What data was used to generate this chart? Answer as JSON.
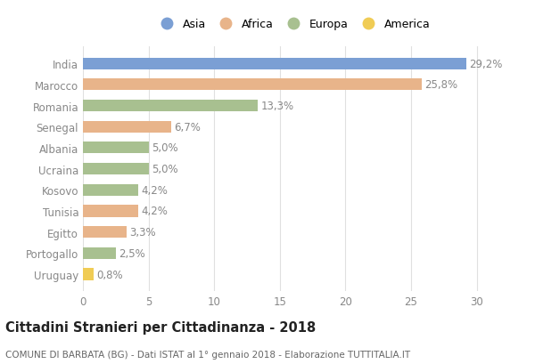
{
  "countries": [
    "India",
    "Marocco",
    "Romania",
    "Senegal",
    "Albania",
    "Ucraina",
    "Kosovo",
    "Tunisia",
    "Egitto",
    "Portogallo",
    "Uruguay"
  ],
  "values": [
    29.2,
    25.8,
    13.3,
    6.7,
    5.0,
    5.0,
    4.2,
    4.2,
    3.3,
    2.5,
    0.8
  ],
  "labels": [
    "29,2%",
    "25,8%",
    "13,3%",
    "6,7%",
    "5,0%",
    "5,0%",
    "4,2%",
    "4,2%",
    "3,3%",
    "2,5%",
    "0,8%"
  ],
  "continents": [
    "Asia",
    "Africa",
    "Europa",
    "Africa",
    "Europa",
    "Europa",
    "Europa",
    "Africa",
    "Africa",
    "Europa",
    "America"
  ],
  "colors": {
    "Asia": "#7b9fd4",
    "Africa": "#e8b48a",
    "Europa": "#a8c090",
    "America": "#f0cc55"
  },
  "legend_order": [
    "Asia",
    "Africa",
    "Europa",
    "America"
  ],
  "title": "Cittadini Stranieri per Cittadinanza - 2018",
  "subtitle": "COMUNE DI BARBATA (BG) - Dati ISTAT al 1° gennaio 2018 - Elaborazione TUTTITALIA.IT",
  "xlim": [
    0,
    32
  ],
  "xticks": [
    0,
    5,
    10,
    15,
    20,
    25,
    30
  ],
  "bg_color": "#ffffff",
  "grid_color": "#e0e0e0",
  "bar_height": 0.55,
  "label_fontsize": 8.5,
  "tick_fontsize": 8.5,
  "title_fontsize": 10.5,
  "subtitle_fontsize": 7.5
}
